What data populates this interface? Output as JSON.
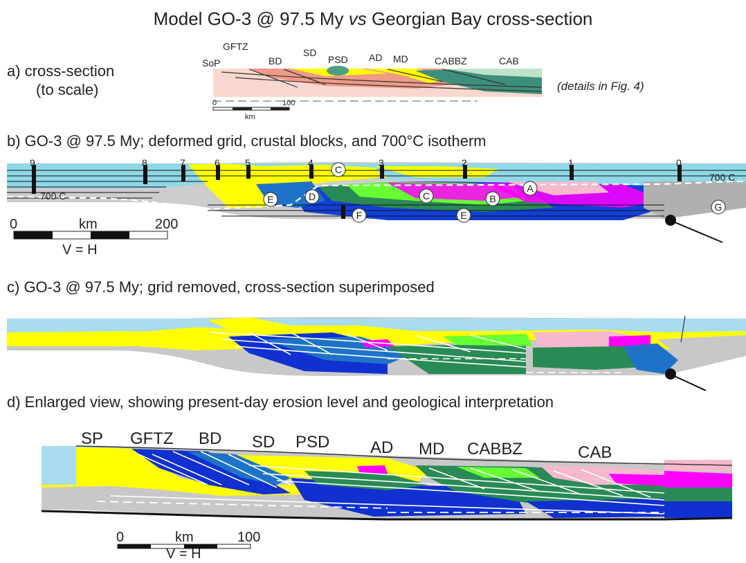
{
  "title": {
    "prefix": "Model GO-3 @ 97.5 My ",
    "vs": "vs",
    "suffix": " Georgian Bay cross-section"
  },
  "panels": {
    "a": {
      "label_line1": "a) cross-section",
      "label_line2": "(to scale)",
      "note": "(details in Fig. 4)",
      "zone_labels": [
        "SoP",
        "GFTZ",
        "BD",
        "SD",
        "PSD",
        "AD",
        "MD",
        "CABBZ",
        "CAB"
      ],
      "scale": {
        "start": "0",
        "unit": "km",
        "end": "100"
      }
    },
    "b": {
      "label": "b) GO-3 @ 97.5 My; deformed grid, crustal blocks, and 700°C isotherm",
      "column_numbers": [
        "9",
        "8",
        "7",
        "6",
        "5",
        "4",
        "3",
        "2",
        "1",
        "0"
      ],
      "isotherm_left": "700 C",
      "isotherm_right": "700 C",
      "blocks": [
        "A",
        "B",
        "C",
        "C",
        "D",
        "E",
        "E",
        "F",
        "G"
      ],
      "scale": {
        "start": "0",
        "unit": "km",
        "end": "200",
        "ratio": "V = H"
      }
    },
    "c": {
      "label": "c) GO-3 @ 97.5 My; grid removed, cross-section superimposed"
    },
    "d": {
      "label": "d) Enlarged view, showing present-day erosion level and geological interpretation",
      "zone_labels": [
        "SP",
        "GFTZ",
        "BD",
        "SD",
        "PSD",
        "AD",
        "MD",
        "CABBZ",
        "CAB"
      ],
      "scale": {
        "start": "0",
        "unit": "km",
        "end": "100",
        "ratio": "V = H"
      }
    }
  },
  "colors": {
    "cyan": "#a9dcef",
    "yellow": "#ffff00",
    "gray": "#c8c8c8",
    "magenta": "#ff00ff",
    "green": "#2a8a55",
    "lime": "#66ff33",
    "blue": "#1030d0",
    "midblue": "#1e73c8",
    "pink": "#f5b8cf",
    "salmon": "#f3a594",
    "teal": "#3d9a7a"
  }
}
